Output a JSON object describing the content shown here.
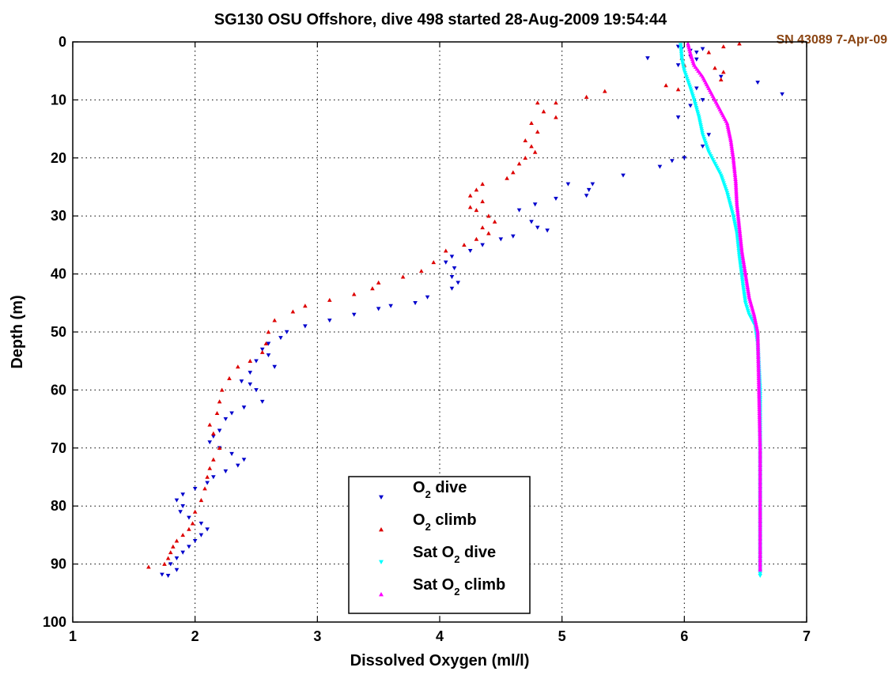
{
  "chart_data": {
    "type": "scatter",
    "title": "SG130 OSU Offshore, dive 498 started 28-Aug-2009 19:54:44",
    "annotation": "SN 43089 7-Apr-09",
    "xlabel": "Dissolved Oxygen (ml/l)",
    "ylabel": "Depth (m)",
    "xlim": [
      1,
      7
    ],
    "ylim": [
      0,
      100
    ],
    "y_reversed": true,
    "grid": true,
    "legend_position": "bottom-center",
    "xticks": [
      "1",
      "2",
      "3",
      "4",
      "5",
      "6",
      "7"
    ],
    "yticks": [
      "0",
      "10",
      "20",
      "30",
      "40",
      "50",
      "60",
      "70",
      "80",
      "90",
      "100"
    ],
    "annotation_color": "#8b4513",
    "series": [
      {
        "name": "O2 dive",
        "name_main": "O",
        "name_sub": "2",
        "name_rest": " dive",
        "color": "#0000cc",
        "marker": "triangle-down",
        "points": [
          [
            5.95,
            0.8
          ],
          [
            5.98,
            1.2
          ],
          [
            6.05,
            1.5
          ],
          [
            6.15,
            1.2
          ],
          [
            6.1,
            1.8
          ],
          [
            6.05,
            2.5
          ],
          [
            5.7,
            2.8
          ],
          [
            6.1,
            3
          ],
          [
            5.95,
            4
          ],
          [
            6.3,
            6
          ],
          [
            6.6,
            7
          ],
          [
            6.8,
            9
          ],
          [
            6.1,
            8
          ],
          [
            6.15,
            10
          ],
          [
            6.05,
            11
          ],
          [
            5.95,
            13
          ],
          [
            6.2,
            16
          ],
          [
            6.15,
            18
          ],
          [
            6.0,
            20
          ],
          [
            5.9,
            20.5
          ],
          [
            5.8,
            21.5
          ],
          [
            5.5,
            23
          ],
          [
            5.05,
            24.5
          ],
          [
            5.25,
            24.5
          ],
          [
            5.22,
            25.5
          ],
          [
            5.2,
            26.5
          ],
          [
            4.95,
            27
          ],
          [
            4.78,
            28
          ],
          [
            4.65,
            29
          ],
          [
            4.75,
            31
          ],
          [
            4.8,
            32
          ],
          [
            4.88,
            32.5
          ],
          [
            4.6,
            33.5
          ],
          [
            4.5,
            34
          ],
          [
            4.35,
            35
          ],
          [
            4.25,
            36
          ],
          [
            4.1,
            37
          ],
          [
            4.05,
            38
          ],
          [
            4.12,
            39
          ],
          [
            4.1,
            40.5
          ],
          [
            4.15,
            41.5
          ],
          [
            4.1,
            42.5
          ],
          [
            3.9,
            44
          ],
          [
            3.8,
            45
          ],
          [
            3.6,
            45.5
          ],
          [
            3.5,
            46
          ],
          [
            3.3,
            47
          ],
          [
            3.1,
            48
          ],
          [
            2.9,
            49
          ],
          [
            2.75,
            50
          ],
          [
            2.7,
            51
          ],
          [
            2.6,
            52
          ],
          [
            2.55,
            53
          ],
          [
            2.6,
            54
          ],
          [
            2.5,
            55
          ],
          [
            2.65,
            56
          ],
          [
            2.45,
            57
          ],
          [
            2.38,
            58.5
          ],
          [
            2.45,
            59
          ],
          [
            2.5,
            60
          ],
          [
            2.55,
            62
          ],
          [
            2.4,
            63
          ],
          [
            2.3,
            64
          ],
          [
            2.25,
            65
          ],
          [
            2.2,
            67
          ],
          [
            2.15,
            68
          ],
          [
            2.12,
            69
          ],
          [
            2.2,
            70
          ],
          [
            2.3,
            71
          ],
          [
            2.4,
            72
          ],
          [
            2.35,
            73
          ],
          [
            2.25,
            74
          ],
          [
            2.15,
            75
          ],
          [
            2.1,
            76
          ],
          [
            2.0,
            77
          ],
          [
            1.9,
            78
          ],
          [
            1.85,
            79
          ],
          [
            1.9,
            80
          ],
          [
            1.88,
            81
          ],
          [
            1.95,
            82
          ],
          [
            2.05,
            83
          ],
          [
            2.1,
            84
          ],
          [
            2.05,
            85
          ],
          [
            2.0,
            86
          ],
          [
            1.95,
            87
          ],
          [
            1.9,
            88
          ],
          [
            1.85,
            89
          ],
          [
            1.8,
            90
          ],
          [
            1.85,
            91
          ],
          [
            1.78,
            92
          ],
          [
            1.73,
            91.8
          ]
        ]
      },
      {
        "name": "O2 climb",
        "name_main": "O",
        "name_sub": "2",
        "name_rest": " climb",
        "color": "#dd0000",
        "marker": "triangle-up",
        "points": [
          [
            6.45,
            0.3
          ],
          [
            6.32,
            0.8
          ],
          [
            6.2,
            1.8
          ],
          [
            5.98,
            2.8
          ],
          [
            6.0,
            4
          ],
          [
            6.25,
            4.5
          ],
          [
            6.32,
            5.2
          ],
          [
            6.3,
            6.5
          ],
          [
            5.85,
            7.5
          ],
          [
            5.95,
            8.2
          ],
          [
            5.35,
            8.5
          ],
          [
            5.2,
            9.5
          ],
          [
            4.95,
            10.5
          ],
          [
            4.8,
            10.5
          ],
          [
            4.85,
            12
          ],
          [
            4.95,
            13
          ],
          [
            4.75,
            14
          ],
          [
            4.8,
            15.5
          ],
          [
            4.7,
            17
          ],
          [
            4.75,
            18
          ],
          [
            4.78,
            19
          ],
          [
            4.7,
            20
          ],
          [
            4.65,
            21
          ],
          [
            4.6,
            22.5
          ],
          [
            4.55,
            23.5
          ],
          [
            4.35,
            24.5
          ],
          [
            4.3,
            25.5
          ],
          [
            4.25,
            26.5
          ],
          [
            4.35,
            27.5
          ],
          [
            4.25,
            28.5
          ],
          [
            4.3,
            29
          ],
          [
            4.4,
            30
          ],
          [
            4.45,
            31
          ],
          [
            4.35,
            32
          ],
          [
            4.4,
            33
          ],
          [
            4.3,
            34
          ],
          [
            4.2,
            35
          ],
          [
            4.05,
            36
          ],
          [
            3.95,
            38
          ],
          [
            3.85,
            39.5
          ],
          [
            3.7,
            40.5
          ],
          [
            3.5,
            41.5
          ],
          [
            3.45,
            42.5
          ],
          [
            3.3,
            43.5
          ],
          [
            3.1,
            44.5
          ],
          [
            2.9,
            45.5
          ],
          [
            2.8,
            46.5
          ],
          [
            2.65,
            48
          ],
          [
            2.6,
            50
          ],
          [
            2.58,
            52
          ],
          [
            2.55,
            53.5
          ],
          [
            2.45,
            55
          ],
          [
            2.35,
            56
          ],
          [
            2.28,
            58
          ],
          [
            2.22,
            60
          ],
          [
            2.2,
            62
          ],
          [
            2.18,
            64
          ],
          [
            2.12,
            66
          ],
          [
            2.15,
            67.5
          ],
          [
            2.2,
            70
          ],
          [
            2.15,
            72
          ],
          [
            2.12,
            73.5
          ],
          [
            2.1,
            75
          ],
          [
            2.08,
            77
          ],
          [
            2.05,
            79
          ],
          [
            2.0,
            81
          ],
          [
            1.98,
            83
          ],
          [
            1.95,
            84
          ],
          [
            1.9,
            85
          ],
          [
            1.85,
            86
          ],
          [
            1.82,
            87
          ],
          [
            1.8,
            88
          ],
          [
            1.78,
            89
          ],
          [
            1.75,
            90
          ],
          [
            1.62,
            90.5
          ]
        ]
      },
      {
        "name": "Sat O2 dive",
        "name_main": "Sat O",
        "name_sub": "2",
        "name_rest": " dive",
        "color": "#00ffff",
        "marker": "triangle-down",
        "curve": [
          [
            5.97,
            0.5
          ],
          [
            5.98,
            3
          ],
          [
            6.0,
            5
          ],
          [
            6.05,
            8
          ],
          [
            6.08,
            10
          ],
          [
            6.12,
            13
          ],
          [
            6.15,
            16
          ],
          [
            6.2,
            19
          ],
          [
            6.25,
            21
          ],
          [
            6.3,
            23
          ],
          [
            6.35,
            26
          ],
          [
            6.4,
            30
          ],
          [
            6.43,
            33
          ],
          [
            6.45,
            37
          ],
          [
            6.48,
            42
          ],
          [
            6.5,
            45
          ],
          [
            6.53,
            47
          ],
          [
            6.58,
            49
          ],
          [
            6.6,
            52
          ],
          [
            6.62,
            60
          ],
          [
            6.62,
            70
          ],
          [
            6.62,
            80
          ],
          [
            6.62,
            92
          ]
        ]
      },
      {
        "name": "Sat O2 climb",
        "name_main": "Sat O",
        "name_sub": "2",
        "name_rest": " climb",
        "color": "#ff00ff",
        "marker": "triangle-up",
        "curve": [
          [
            6.03,
            0.3
          ],
          [
            6.05,
            2
          ],
          [
            6.08,
            4
          ],
          [
            6.15,
            6
          ],
          [
            6.2,
            8
          ],
          [
            6.25,
            10
          ],
          [
            6.3,
            12
          ],
          [
            6.35,
            14
          ],
          [
            6.38,
            17
          ],
          [
            6.4,
            20
          ],
          [
            6.42,
            24
          ],
          [
            6.43,
            28
          ],
          [
            6.45,
            32
          ],
          [
            6.47,
            36
          ],
          [
            6.5,
            40
          ],
          [
            6.53,
            44
          ],
          [
            6.57,
            47
          ],
          [
            6.6,
            50
          ],
          [
            6.61,
            60
          ],
          [
            6.62,
            70
          ],
          [
            6.62,
            80
          ],
          [
            6.62,
            91
          ]
        ]
      }
    ]
  }
}
